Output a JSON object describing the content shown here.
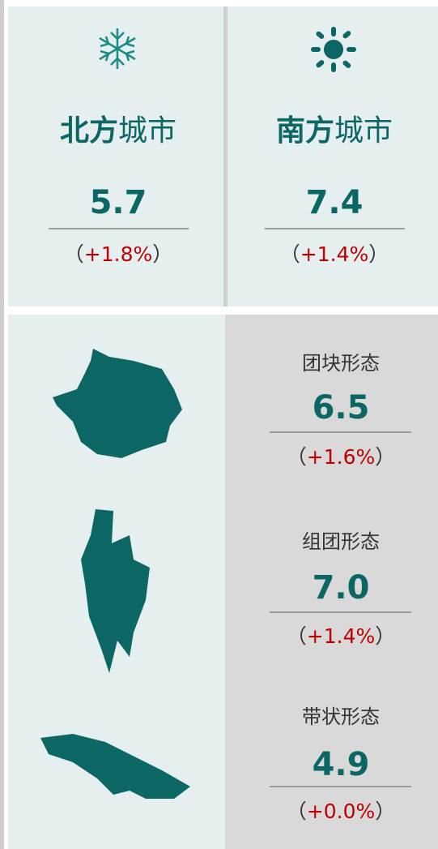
{
  "top": [
    {
      "name_bold": "北方",
      "name_rest": "城市",
      "value": "5.7",
      "change": "+1.8%"
    },
    {
      "name_bold": "南方",
      "name_rest": "城市",
      "value": "7.4",
      "change": "+1.4%"
    }
  ],
  "forms": [
    {
      "label": "团块形态",
      "value": "6.5",
      "change": "+1.6%"
    },
    {
      "label": "组团形态",
      "value": "7.0",
      "change": "+1.4%"
    },
    {
      "label": "带状形态",
      "value": "4.9",
      "change": "+0.0%"
    }
  ],
  "paren_open": "（",
  "paren_close": "）"
}
